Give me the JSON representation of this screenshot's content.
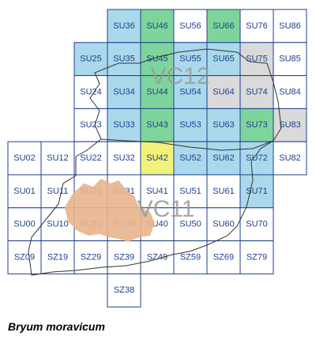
{
  "grid": {
    "rows": [
      [
        null,
        null,
        null,
        {
          "label": "SU36",
          "color": "#aad9eb"
        },
        {
          "label": "SU46",
          "color": "#7ed59b"
        },
        {
          "label": "SU56",
          "color": "#ffffff"
        },
        {
          "label": "SU66",
          "color": "#7ed59b"
        },
        {
          "label": "SU76",
          "color": "#ffffff"
        },
        {
          "label": "SU86",
          "color": "#ffffff"
        }
      ],
      [
        null,
        null,
        {
          "label": "SU25",
          "color": "#aad9eb"
        },
        {
          "label": "SU35",
          "color": "#aad9eb"
        },
        {
          "label": "SU45",
          "color": "#7ed59b"
        },
        {
          "label": "SU55",
          "color": "#aad9eb"
        },
        {
          "label": "SU65",
          "color": "#aad9eb"
        },
        {
          "label": "SU75",
          "color": "#dadada"
        },
        {
          "label": "SU85",
          "color": "#ffffff"
        }
      ],
      [
        null,
        null,
        {
          "label": "SU24",
          "color": "#ffffff"
        },
        {
          "label": "SU34",
          "color": "#aad9eb"
        },
        {
          "label": "SU44",
          "color": "#7ed59b"
        },
        {
          "label": "SU54",
          "color": "#aad9eb"
        },
        {
          "label": "SU64",
          "color": "#dadada"
        },
        {
          "label": "SU74",
          "color": "#dadada"
        },
        {
          "label": "SU84",
          "color": "#ffffff"
        }
      ],
      [
        null,
        null,
        {
          "label": "SU23",
          "color": "#ffffff"
        },
        {
          "label": "SU33",
          "color": "#aad9eb"
        },
        {
          "label": "SU43",
          "color": "#7ed59b"
        },
        {
          "label": "SU53",
          "color": "#aad9eb"
        },
        {
          "label": "SU63",
          "color": "#aad9eb"
        },
        {
          "label": "SU73",
          "color": "#7ed59b"
        },
        {
          "label": "SU83",
          "color": "#dadada"
        }
      ],
      [
        {
          "label": "SU02",
          "color": "#ffffff"
        },
        {
          "label": "SU12",
          "color": "#ffffff"
        },
        {
          "label": "SU22",
          "color": "#ffffff"
        },
        {
          "label": "SU32",
          "color": "#ffffff"
        },
        {
          "label": "SU42",
          "color": "#f2f27a"
        },
        {
          "label": "SU52",
          "color": "#aad9eb"
        },
        {
          "label": "SU62",
          "color": "#aad9eb"
        },
        {
          "label": "SU72",
          "color": "#aad9eb"
        },
        {
          "label": "SU82",
          "color": "#ffffff"
        }
      ],
      [
        {
          "label": "SU01",
          "color": "#ffffff"
        },
        {
          "label": "SU11",
          "color": "#ffffff"
        },
        {
          "label": "SU21",
          "color": "#ffffff"
        },
        {
          "label": "SU31",
          "color": "#ffffff"
        },
        {
          "label": "SU41",
          "color": "#ffffff"
        },
        {
          "label": "SU51",
          "color": "#ffffff"
        },
        {
          "label": "SU61",
          "color": "#ffffff"
        },
        {
          "label": "SU71",
          "color": "#aad9eb"
        }
      ],
      [
        {
          "label": "SU00",
          "color": "#ffffff"
        },
        {
          "label": "SU10",
          "color": "#ffffff"
        },
        {
          "label": "SU20",
          "color": "#ffffff"
        },
        {
          "label": "SU30",
          "color": "#ffffff"
        },
        {
          "label": "SU40",
          "color": "#ffffff"
        },
        {
          "label": "SU50",
          "color": "#ffffff"
        },
        {
          "label": "SU60",
          "color": "#ffffff"
        },
        {
          "label": "SU70",
          "color": "#ffffff"
        }
      ],
      [
        {
          "label": "SZ09",
          "color": "#ffffff"
        },
        {
          "label": "SZ19",
          "color": "#ffffff"
        },
        {
          "label": "SZ29",
          "color": "#ffffff"
        },
        {
          "label": "SZ39",
          "color": "#ffffff"
        },
        {
          "label": "SZ49",
          "color": "#ffffff"
        },
        {
          "label": "SZ59",
          "color": "#ffffff"
        },
        {
          "label": "SZ69",
          "color": "#ffffff"
        },
        {
          "label": "SZ79",
          "color": "#ffffff"
        }
      ],
      [
        null,
        null,
        null,
        {
          "label": "SZ38",
          "color": "#ffffff"
        }
      ]
    ]
  },
  "regions": [
    "VC12",
    "VC11"
  ],
  "caption": "Bryum moravicum"
}
